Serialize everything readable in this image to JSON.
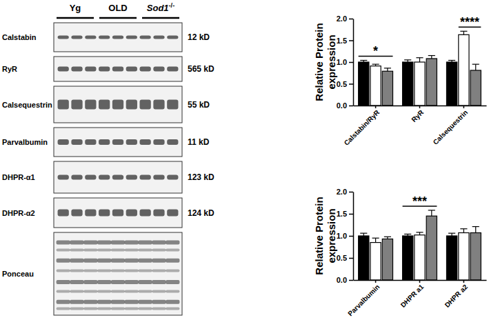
{
  "blot": {
    "rows": [
      {
        "label": "Calstabin",
        "size": "12 kD"
      },
      {
        "label": "RyR",
        "size": "565 kD"
      },
      {
        "label": "Calsequestrin",
        "size": "55 kD"
      },
      {
        "label": "Parvalbumin",
        "size": "11 kD"
      },
      {
        "label": "DHPR-α1",
        "size": "123 kD"
      },
      {
        "label": "DHPR-α2",
        "size": "124 kD"
      },
      {
        "label": "Ponceau"
      }
    ]
  },
  "chart_data": [
    {
      "type": "bar",
      "y_label": "Relative Protein expression",
      "categories": [
        "Calstabin/RyR",
        "RyR",
        "Calsequestrin"
      ],
      "series": [
        {
          "name": "Yg",
          "color": "#000000",
          "values": [
            1.0,
            1.0,
            1.0
          ],
          "errors": [
            0.04,
            0.05,
            0.04
          ]
        },
        {
          "name": "OLD",
          "color": "#ffffff",
          "values": [
            0.91,
            1.0,
            1.63
          ],
          "errors": [
            0.04,
            0.1,
            0.08
          ]
        },
        {
          "name": "Sod1-/-",
          "color": "#808080",
          "values": [
            0.79,
            1.08,
            0.81
          ],
          "errors": [
            0.07,
            0.07,
            0.14
          ]
        }
      ],
      "ylim": [
        0,
        2
      ],
      "yticks": [
        {
          "value": 0,
          "label": "0.0"
        },
        0.5,
        {
          "value": 1,
          "label": "1.0"
        },
        1.5,
        {
          "value": 2,
          "label": "2.0"
        }
      ],
      "annotations": [
        {
          "text": "*",
          "category": 0,
          "series": [
            0,
            2
          ]
        },
        {
          "text": "****",
          "category": 2,
          "series": [
            1,
            2
          ]
        }
      ]
    },
    {
      "type": "bar",
      "y_label": "Relative Protein expression",
      "categories": [
        "Parvalbumin",
        "DHPR a1",
        "DHPR a2"
      ],
      "series": [
        {
          "color": "#000000",
          "values": [
            1.0,
            1.0,
            1.0
          ],
          "errors": [
            0.06,
            0.04,
            0.06
          ]
        },
        {
          "color": "#ffffff",
          "values": [
            0.85,
            1.02,
            1.07
          ],
          "errors": [
            0.1,
            0.06,
            0.09
          ]
        },
        {
          "color": "#808080",
          "values": [
            0.93,
            1.45,
            1.07
          ],
          "errors": [
            0.05,
            0.13,
            0.14
          ]
        }
      ],
      "ylim": [
        0,
        2
      ],
      "yticks": [
        {
          "value": 0,
          "label": "0.0"
        },
        0.5,
        {
          "value": 1,
          "label": "1.0"
        },
        1.5,
        {
          "value": 2,
          "label": "2.0"
        }
      ],
      "annotations": [
        {
          "text": "***",
          "category": 1,
          "series": [
            0,
            2
          ]
        }
      ]
    }
  ]
}
